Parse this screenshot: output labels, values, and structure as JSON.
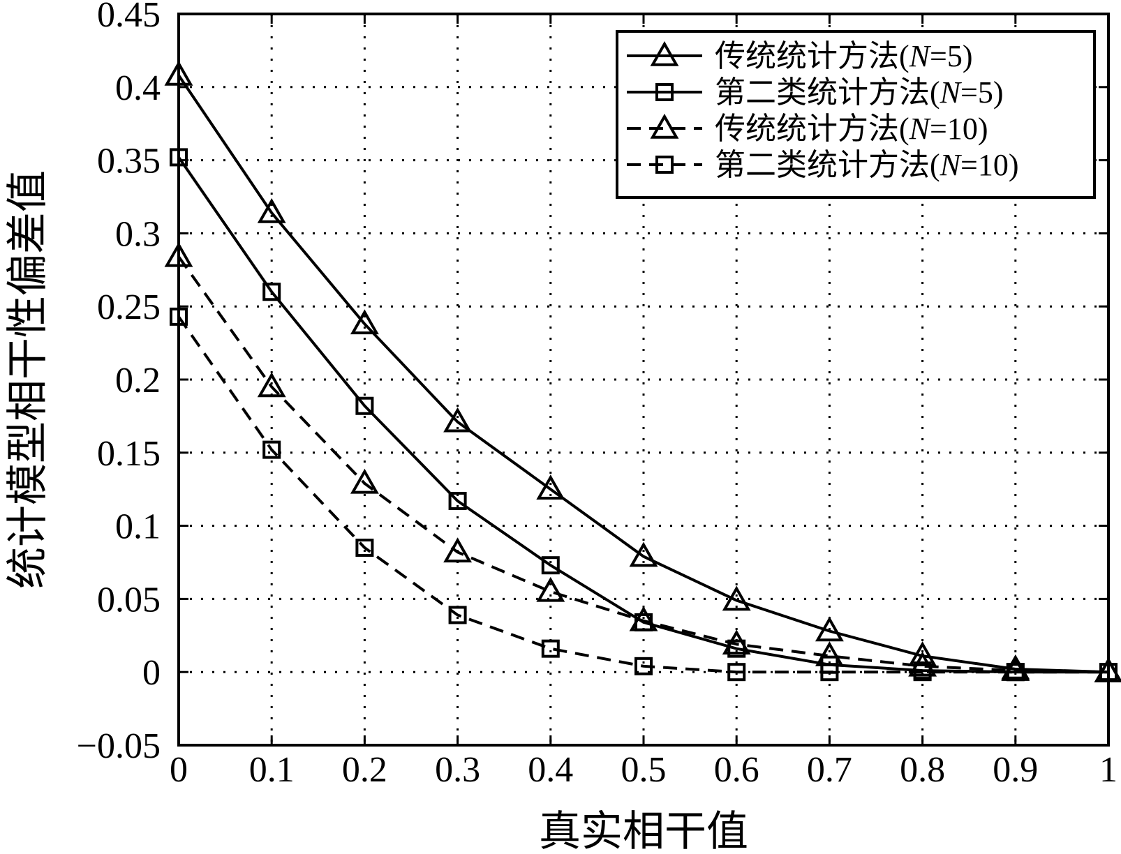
{
  "chart_data": {
    "type": "line",
    "title": "",
    "xlabel": "真实相干值",
    "ylabel": "统计模型相干性偏差值",
    "xlim": [
      0,
      1
    ],
    "ylim": [
      -0.05,
      0.45
    ],
    "x": [
      0,
      0.1,
      0.2,
      0.3,
      0.4,
      0.5,
      0.6,
      0.7,
      0.8,
      0.9,
      1
    ],
    "x_tick_labels": [
      "0",
      "0.1",
      "0.2",
      "0.3",
      "0.4",
      "0.5",
      "0.6",
      "0.7",
      "0.8",
      "0.9",
      "1"
    ],
    "y_ticks": [
      -0.05,
      0,
      0.05,
      0.1,
      0.15,
      0.2,
      0.25,
      0.3,
      0.35,
      0.4,
      0.45
    ],
    "y_tick_labels": [
      "−0.05",
      "0",
      "0.05",
      "0.1",
      "0.15",
      "0.2",
      "0.25",
      "0.3",
      "0.35",
      "0.4",
      "0.45"
    ],
    "grid": true,
    "legend_position": "top-right",
    "series": [
      {
        "label_prefix": "传统统计方法(",
        "label_var": "N",
        "label_suffix": "=5)",
        "marker": "triangle",
        "line_style": "solid",
        "values": [
          0.408,
          0.314,
          0.238,
          0.171,
          0.125,
          0.079,
          0.049,
          0.028,
          0.011,
          0.002,
          0.0
        ]
      },
      {
        "label_prefix": "第二类统计方法(",
        "label_var": "N",
        "label_suffix": "=5)",
        "marker": "square",
        "line_style": "solid",
        "values": [
          0.352,
          0.26,
          0.182,
          0.117,
          0.073,
          0.034,
          0.016,
          0.005,
          0.001,
          0.0,
          0.0
        ]
      },
      {
        "label_prefix": "传统统计方法(",
        "label_var": "N",
        "label_suffix": "=10)",
        "marker": "triangle",
        "line_style": "dashed",
        "values": [
          0.284,
          0.195,
          0.129,
          0.082,
          0.055,
          0.035,
          0.019,
          0.011,
          0.004,
          0.001,
          0.0
        ]
      },
      {
        "label_prefix": "第二类统计方法(",
        "label_var": "N",
        "label_suffix": "=10)",
        "marker": "square",
        "line_style": "dashed",
        "values": [
          0.243,
          0.152,
          0.085,
          0.039,
          0.016,
          0.004,
          0.0,
          0.0,
          0.0,
          0.0,
          0.0
        ]
      }
    ]
  }
}
